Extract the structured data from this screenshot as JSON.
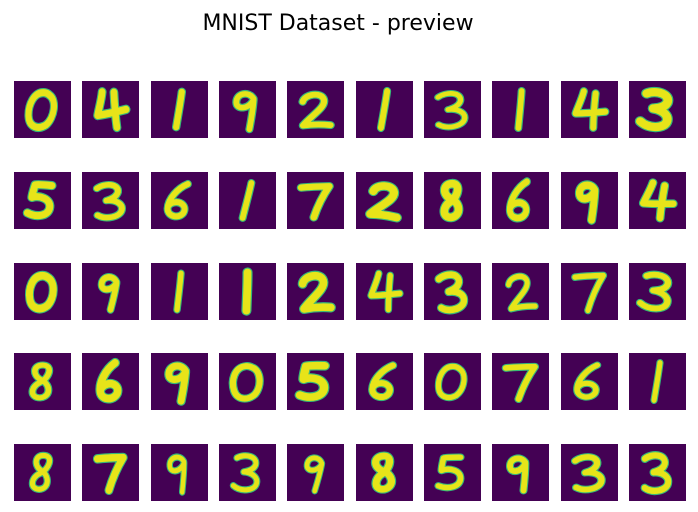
{
  "figure": {
    "title": "MNIST Dataset - preview"
  },
  "colors": {
    "tile_background": "#440154",
    "digit_stroke": "#e7e419",
    "digit_edge": "#35b779",
    "page_background": "#ffffff"
  },
  "grid": {
    "rows": 5,
    "cols": 10,
    "digits": [
      [
        0,
        4,
        1,
        9,
        2,
        1,
        3,
        1,
        4,
        3
      ],
      [
        5,
        3,
        6,
        1,
        7,
        2,
        8,
        6,
        9,
        4
      ],
      [
        0,
        9,
        1,
        1,
        2,
        4,
        3,
        2,
        7,
        3
      ],
      [
        8,
        6,
        9,
        0,
        5,
        6,
        0,
        7,
        6,
        1
      ],
      [
        8,
        7,
        9,
        3,
        9,
        8,
        5,
        9,
        3,
        3
      ]
    ]
  }
}
